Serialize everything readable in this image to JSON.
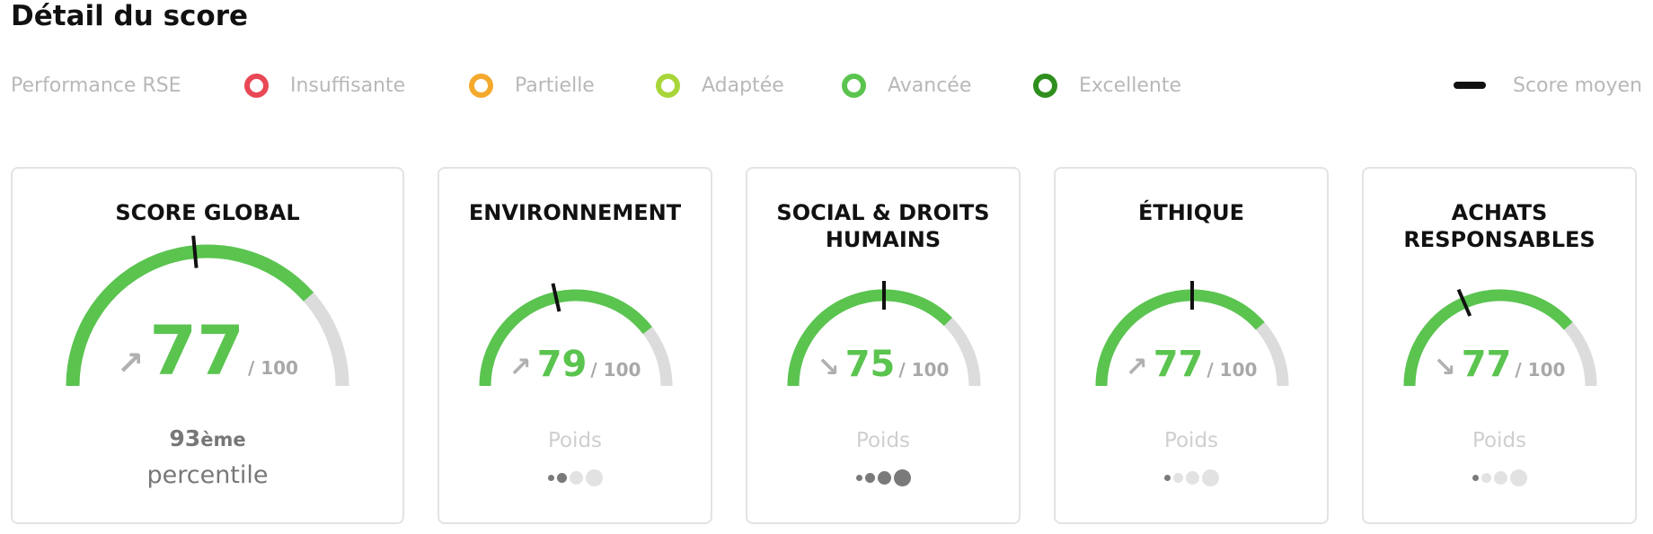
{
  "page_title": "Détail du score",
  "colors": {
    "insufficient": "#e84855",
    "partial": "#f4a92d",
    "adapted": "#a8d63a",
    "advanced": "#5ac44f",
    "excellent": "#2f8f1e",
    "gauge_track": "#dcdcdc",
    "average_marker": "#111111"
  },
  "legend": {
    "title": "Performance RSE",
    "items": [
      {
        "label": "Insuffisante",
        "color": "#e84855"
      },
      {
        "label": "Partielle",
        "color": "#f4a92d"
      },
      {
        "label": "Adaptée",
        "color": "#a8d63a"
      },
      {
        "label": "Avancée",
        "color": "#5ac44f"
      },
      {
        "label": "Excellente",
        "color": "#2f8f1e"
      }
    ],
    "average_label": "Score moyen"
  },
  "global": {
    "title": "SCORE GLOBAL",
    "score": 77,
    "max": "/ 100",
    "trend": "↗",
    "average": 47,
    "percentile_rank": "93",
    "percentile_suffix": "ème",
    "percentile_label": "percentile"
  },
  "categories": [
    {
      "title": "ENVIRONNEMENT",
      "score": 79,
      "max": "/ 100",
      "trend": "↗",
      "average": 43,
      "weight": 2,
      "weight_label": "Poids"
    },
    {
      "title": "SOCIAL & DROITS HUMAINS",
      "score": 75,
      "max": "/ 100",
      "trend": "↘",
      "average": 50,
      "weight": 4,
      "weight_label": "Poids"
    },
    {
      "title": "ÉTHIQUE",
      "score": 77,
      "max": "/ 100",
      "trend": "↗",
      "average": 50,
      "weight": 1,
      "weight_label": "Poids"
    },
    {
      "title": "ACHATS RESPONSABLES",
      "score": 77,
      "max": "/ 100",
      "trend": "↘",
      "average": 37,
      "weight": 1,
      "weight_label": "Poids"
    }
  ]
}
